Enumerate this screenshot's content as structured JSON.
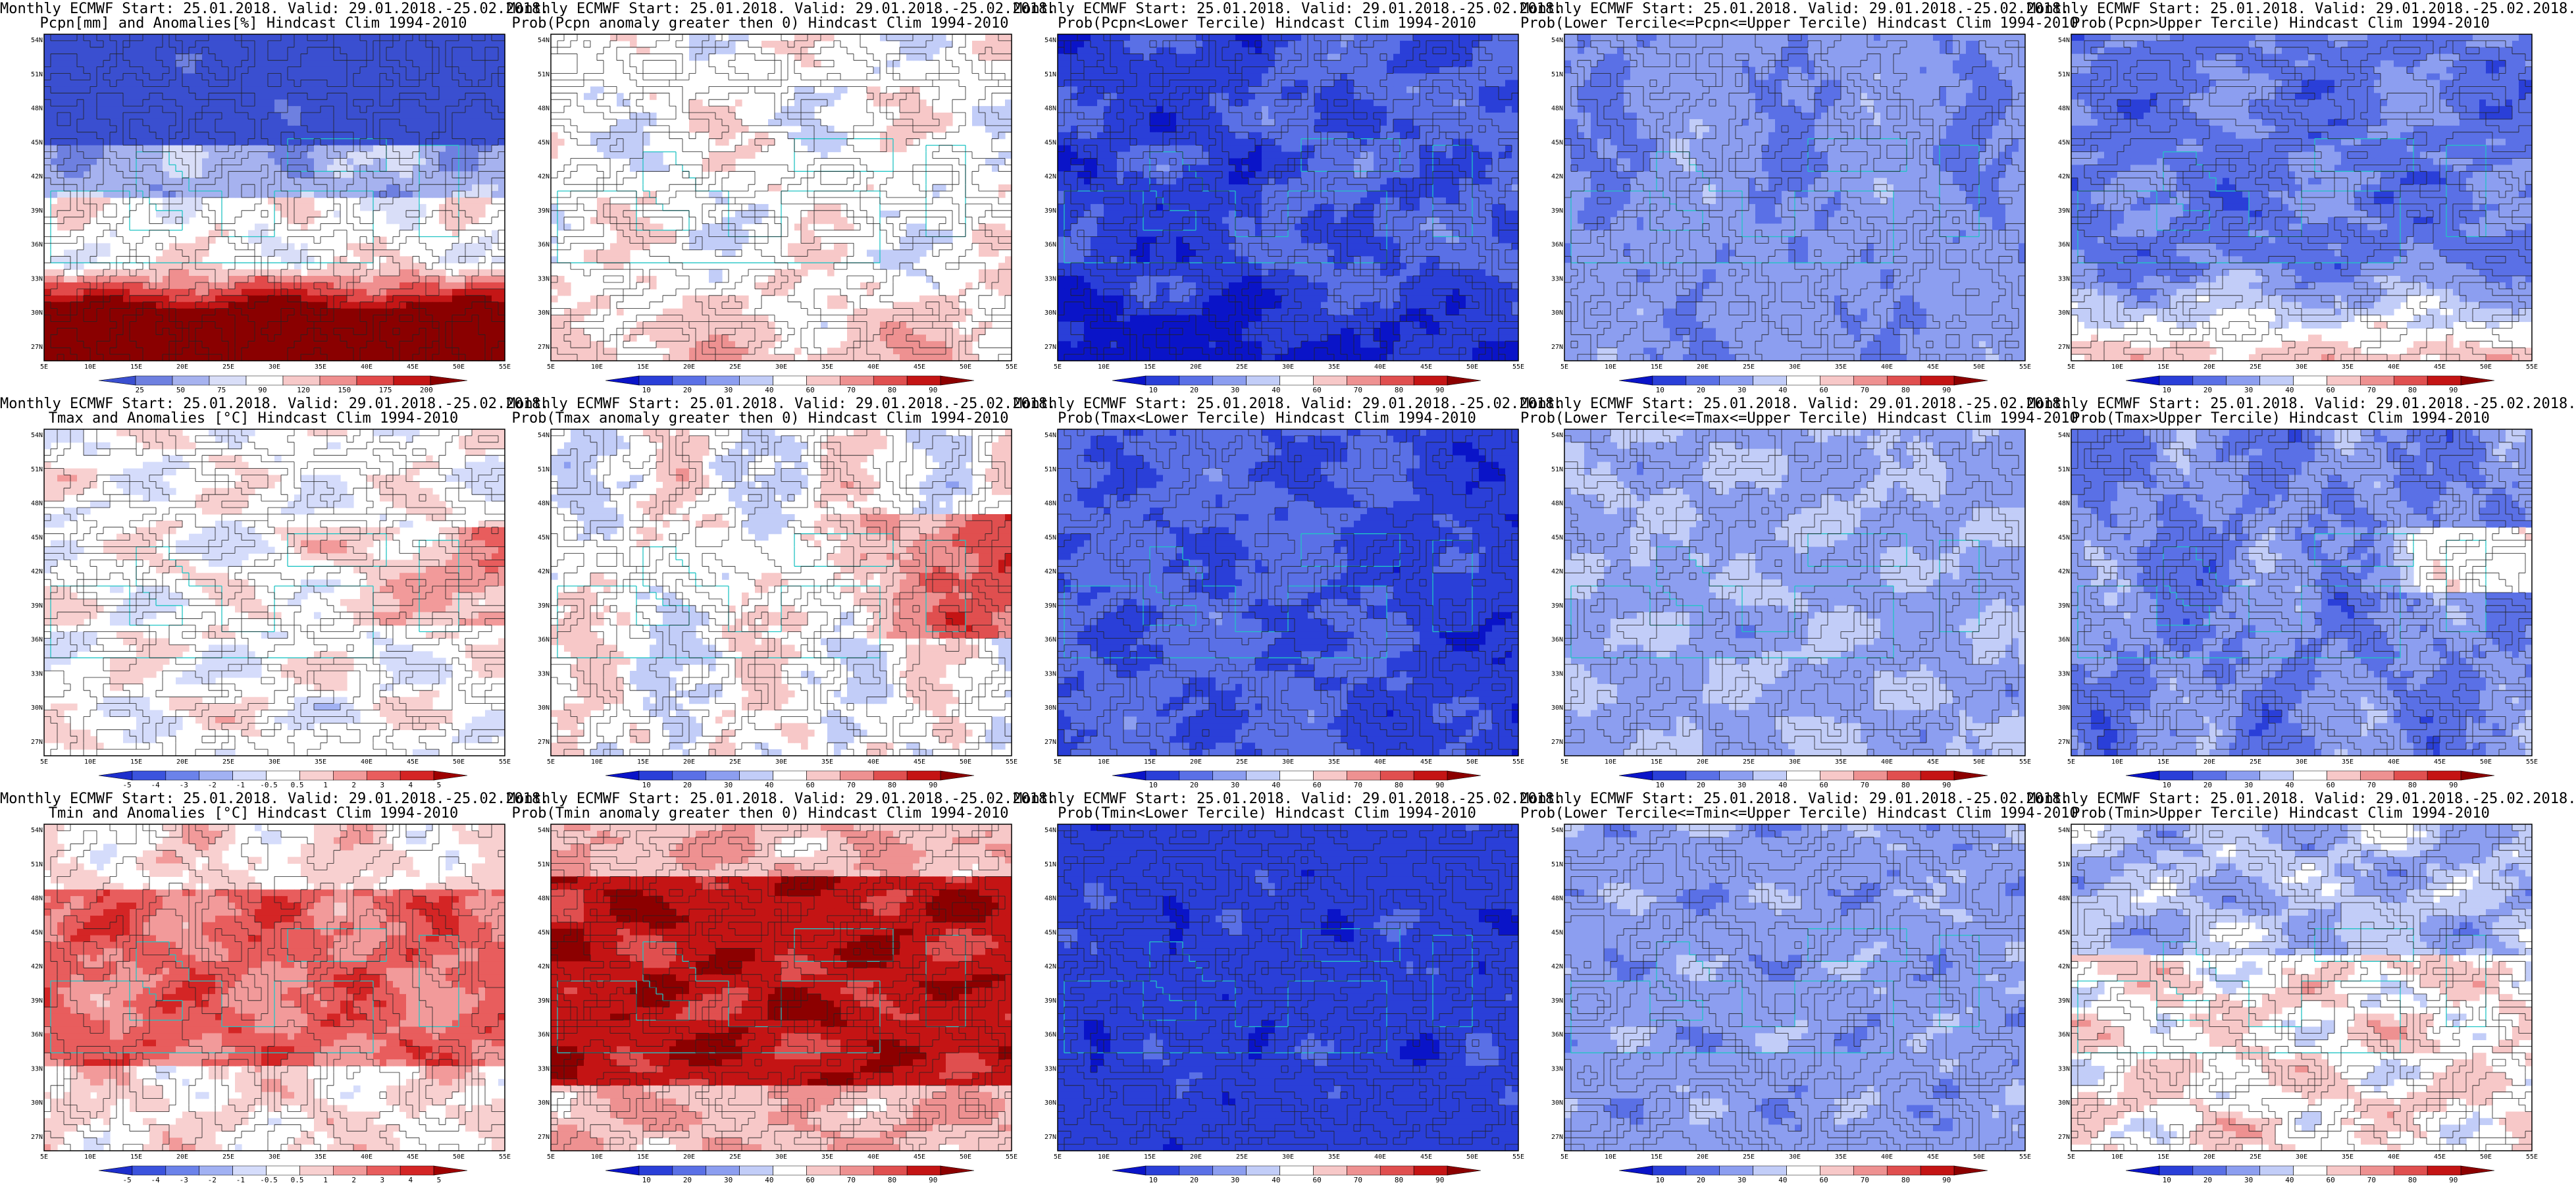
{
  "lat_ticks": [
    "54N",
    "51N",
    "48N",
    "45N",
    "42N",
    "39N",
    "36N",
    "33N",
    "30N",
    "27N"
  ],
  "lon_ticks": [
    "5E",
    "10E",
    "15E",
    "20E",
    "25E",
    "30E",
    "35E",
    "40E",
    "45E",
    "50E",
    "55E"
  ],
  "scales": {
    "pcpn_pct": {
      "colors": [
        "#3a4fd0",
        "#6e80e0",
        "#a6b2ef",
        "#d9def8",
        "#ffffff",
        "#f7c9c9",
        "#ef8f8f",
        "#e24a4a",
        "#c41616",
        "#8a0000"
      ],
      "labels": [
        "25",
        "50",
        "75",
        "90",
        "120",
        "150",
        "175",
        "200"
      ]
    },
    "temp_anom": {
      "colors": [
        "#1d2ecc",
        "#3b53dd",
        "#6b82ea",
        "#a1b1f3",
        "#d5dcfb",
        "#ffffff",
        "#f8d0d0",
        "#f29a9a",
        "#e85d5d",
        "#d42525",
        "#9e0000"
      ],
      "labels": [
        "-5",
        "-4",
        "-3",
        "-2",
        "-1",
        "-0.5",
        "0.5",
        "1",
        "2",
        "3",
        "4",
        "5"
      ]
    },
    "prob": {
      "colors": [
        "#0a14c8",
        "#2a3fd8",
        "#5a70e6",
        "#8c9ef0",
        "#c2cdf8",
        "#ffffff",
        "#f7c8c8",
        "#ee9191",
        "#e04f4f",
        "#c41414",
        "#8c0000"
      ],
      "labels": [
        "10",
        "20",
        "30",
        "40",
        "60",
        "70",
        "80",
        "90"
      ]
    }
  },
  "panels": [
    {
      "line1": "Monthly ECMWF Start: 25.01.2018. Valid: 29.01.2018.-25.02.2018.",
      "line2": "Pcpn[mm] and Anomalies[%] Hindcast Clim 1994-2010",
      "scale": "pcpn_pct",
      "mode": "pcpn_anom"
    },
    {
      "line1": "Monthly ECMWF Start: 25.01.2018. Valid: 29.01.2018.-25.02.2018.",
      "line2": "Prob(Pcpn anomaly greater then 0) Hindcast Clim 1994-2010",
      "scale": "prob",
      "mode": "pcpn_pos"
    },
    {
      "line1": "Monthly ECMWF Start: 25.01.2018. Valid: 29.01.2018.-25.02.2018.",
      "line2": "Prob(Pcpn<Lower Tercile) Hindcast Clim 1994-2010",
      "scale": "prob",
      "mode": "pcpn_low"
    },
    {
      "line1": "Monthly ECMWF Start: 25.01.2018. Valid: 29.01.2018.-25.02.2018.",
      "line2": "Prob(Lower Tercile<=Pcpn<=Upper Tercile) Hindcast Clim 1994-2010",
      "scale": "prob",
      "mode": "pcpn_mid"
    },
    {
      "line1": "Monthly ECMWF Start: 25.01.2018. Valid: 29.01.2018.-25.02.2018.",
      "line2": "Prob(Pcpn>Upper Tercile) Hindcast Clim 1994-2010",
      "scale": "prob",
      "mode": "pcpn_up"
    },
    {
      "line1": "Monthly ECMWF Start: 25.01.2018. Valid: 29.01.2018.-25.02.2018.",
      "line2": "Tmax and Anomalies [°C] Hindcast Clim 1994-2010",
      "scale": "temp_anom",
      "mode": "t_anom"
    },
    {
      "line1": "Monthly ECMWF Start: 25.01.2018. Valid: 29.01.2018.-25.02.2018.",
      "line2": "Prob(Tmax anomaly greater then 0) Hindcast Clim 1994-2010",
      "scale": "prob",
      "mode": "t_pos"
    },
    {
      "line1": "Monthly ECMWF Start: 25.01.2018. Valid: 29.01.2018.-25.02.2018.",
      "line2": "Prob(Tmax<Lower Tercile) Hindcast Clim 1994-2010",
      "scale": "prob",
      "mode": "t_low"
    },
    {
      "line1": "Monthly ECMWF Start: 25.01.2018. Valid: 29.01.2018.-25.02.2018.",
      "line2": "Prob(Lower Tercile<=Tmax<=Upper Tercile) Hindcast Clim 1994-2010",
      "scale": "prob",
      "mode": "t_mid"
    },
    {
      "line1": "Monthly ECMWF Start: 25.01.2018. Valid: 29.01.2018.-25.02.2018.",
      "line2": "Prob(Tmax>Upper Tercile) Hindcast Clim 1994-2010",
      "scale": "prob",
      "mode": "t_up"
    },
    {
      "line1": "Monthly ECMWF Start: 25.01.2018. Valid: 29.01.2018.-25.02.2018.",
      "line2": "Tmin and Anomalies [°C] Hindcast Clim 1994-2010",
      "scale": "temp_anom",
      "mode": "tn_anom"
    },
    {
      "line1": "Monthly ECMWF Start: 25.01.2018. Valid: 29.01.2018.-25.02.2018.",
      "line2": "Prob(Tmin anomaly greater then 0) Hindcast Clim 1994-2010",
      "scale": "prob",
      "mode": "tn_pos"
    },
    {
      "line1": "Monthly ECMWF Start: 25.01.2018. Valid: 29.01.2018.-25.02.2018.",
      "line2": "Prob(Tmin<Lower Tercile) Hindcast Clim 1994-2010",
      "scale": "prob",
      "mode": "tn_low"
    },
    {
      "line1": "Monthly ECMWF Start: 25.01.2018. Valid: 29.01.2018.-25.02.2018.",
      "line2": "Prob(Lower Tercile<=Tmin<=Upper Tercile) Hindcast Clim 1994-2010",
      "scale": "prob",
      "mode": "tn_mid"
    },
    {
      "line1": "Monthly ECMWF Start: 25.01.2018. Valid: 29.01.2018.-25.02.2018.",
      "line2": "Prob(Tmin>Upper Tercile) Hindcast Clim 1994-2010",
      "scale": "prob",
      "mode": "tn_up"
    }
  ]
}
